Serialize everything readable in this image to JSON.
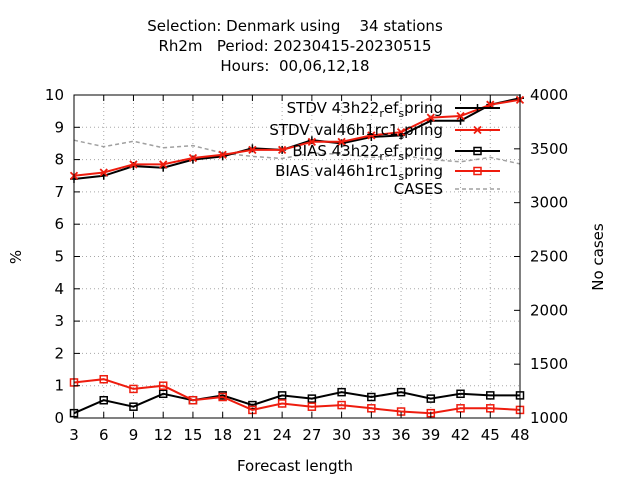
{
  "title_lines": [
    "Selection: Denmark using    34 stations",
    "Rh2m   Period: 20230415-20230515",
    "Hours:  00,06,12,18"
  ],
  "chart_data": {
    "type": "line",
    "title": "Selection: Denmark using    34 stations / Rh2m   Period: 20230415-20230515 / Hours:  00,06,12,18",
    "xlabel": "Forecast length",
    "ylabel": "%",
    "y2label": "No cases",
    "x": [
      3,
      6,
      9,
      12,
      15,
      18,
      21,
      24,
      27,
      30,
      33,
      36,
      39,
      42,
      45,
      48
    ],
    "xlim": [
      3,
      48
    ],
    "ylim": [
      0,
      10
    ],
    "y2lim": [
      1000,
      4000
    ],
    "xticks": [
      "3",
      "6",
      "9",
      "12",
      "15",
      "18",
      "21",
      "24",
      "27",
      "30",
      "33",
      "36",
      "39",
      "42",
      "45",
      "48"
    ],
    "yticks": [
      "0",
      "1",
      "2",
      "3",
      "4",
      "5",
      "6",
      "7",
      "8",
      "9",
      "10"
    ],
    "y2ticks": [
      "1000",
      "1500",
      "2000",
      "2500",
      "3000",
      "3500",
      "4000"
    ],
    "grid": true,
    "legend_position": "top-right",
    "series": [
      {
        "name": "STDV 43h22_ref_spring",
        "legend_label": "STDV 43h22",
        "axis": "y",
        "color": "#000000",
        "marker": "plus",
        "dash": "solid",
        "values": [
          7.4,
          7.5,
          7.8,
          7.75,
          8.0,
          8.1,
          8.35,
          8.3,
          8.6,
          8.5,
          8.7,
          8.75,
          9.2,
          9.2,
          9.7,
          9.9
        ]
      },
      {
        "name": "STDV val46h1rc1_spring",
        "legend_label": "STDV val46h1rc1",
        "axis": "y",
        "color": "#ee1c0e",
        "marker": "x",
        "dash": "solid",
        "values": [
          7.5,
          7.6,
          7.85,
          7.85,
          8.05,
          8.15,
          8.3,
          8.3,
          8.55,
          8.55,
          8.75,
          8.85,
          9.3,
          9.35,
          9.7,
          9.85
        ]
      },
      {
        "name": "BIAS 43h22_ref_spring",
        "legend_label": "BIAS 43h22",
        "axis": "y",
        "color": "#000000",
        "marker": "square",
        "dash": "solid",
        "values": [
          0.15,
          0.55,
          0.35,
          0.75,
          0.55,
          0.7,
          0.4,
          0.7,
          0.6,
          0.8,
          0.65,
          0.8,
          0.6,
          0.75,
          0.7,
          0.7
        ]
      },
      {
        "name": "BIAS val46h1rc1_spring",
        "legend_label": "BIAS val46h1rc1",
        "axis": "y",
        "color": "#ee1c0e",
        "marker": "square",
        "dash": "solid",
        "values": [
          1.1,
          1.2,
          0.9,
          1.0,
          0.55,
          0.65,
          0.25,
          0.45,
          0.35,
          0.4,
          0.3,
          0.2,
          0.15,
          0.3,
          0.3,
          0.25
        ]
      },
      {
        "name": "CASES",
        "legend_label": "CASES",
        "axis": "y2",
        "color": "#a0a0a0",
        "marker": "none",
        "dash": "dashed",
        "values": [
          3580,
          3520,
          3570,
          3510,
          3530,
          3460,
          3430,
          3410,
          3460,
          3450,
          3420,
          3440,
          3400,
          3380,
          3420,
          3360
        ]
      }
    ]
  }
}
